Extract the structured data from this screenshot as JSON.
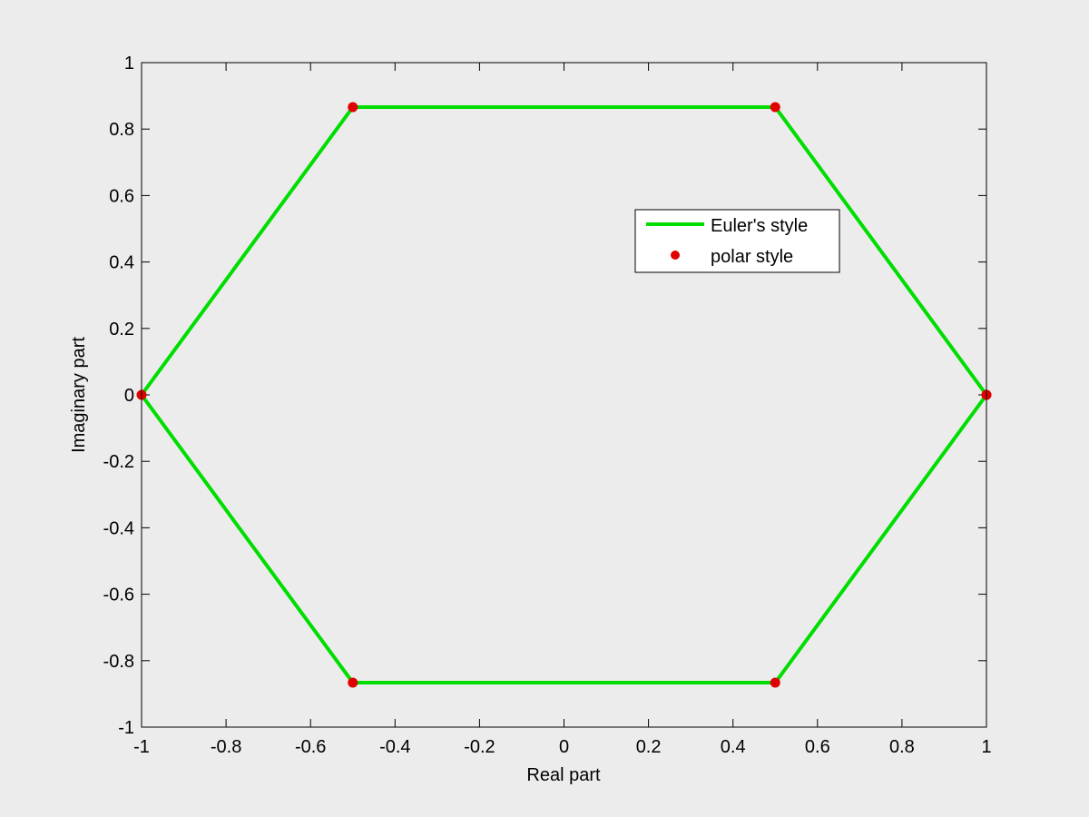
{
  "chart_data": {
    "type": "line",
    "title": "",
    "xlabel": "Real part",
    "ylabel": "Imaginary part",
    "xlim": [
      -1,
      1
    ],
    "ylim": [
      -1,
      1
    ],
    "xticks": [
      -1,
      -0.8,
      -0.6,
      -0.4,
      -0.2,
      0,
      0.2,
      0.4,
      0.6,
      0.8,
      1
    ],
    "yticks": [
      -1,
      -0.8,
      -0.6,
      -0.4,
      -0.2,
      0,
      0.2,
      0.4,
      0.6,
      0.8,
      1
    ],
    "xtick_labels": [
      "-1",
      "-0.8",
      "-0.6",
      "-0.4",
      "-0.2",
      "0",
      "0.2",
      "0.4",
      "0.6",
      "0.8",
      "1"
    ],
    "ytick_labels": [
      "-1",
      "-0.8",
      "-0.6",
      "-0.4",
      "-0.2",
      "0",
      "0.2",
      "0.4",
      "0.6",
      "0.8",
      "1"
    ],
    "grid": false,
    "legend_position": "upper-right-inside",
    "series": [
      {
        "name": "Euler's style",
        "style": "line",
        "color": "#00dd00",
        "x": [
          1,
          0.5,
          -0.5,
          -1,
          -0.5,
          0.5,
          1
        ],
        "y": [
          0,
          0.866,
          0.866,
          0,
          -0.866,
          -0.866,
          0
        ]
      },
      {
        "name": "polar style",
        "style": "markers",
        "color": "#e00000",
        "x": [
          1,
          0.5,
          -0.5,
          -1,
          -0.5,
          0.5,
          1
        ],
        "y": [
          0,
          0.866,
          0.866,
          0,
          -0.866,
          -0.866,
          0
        ]
      }
    ]
  }
}
